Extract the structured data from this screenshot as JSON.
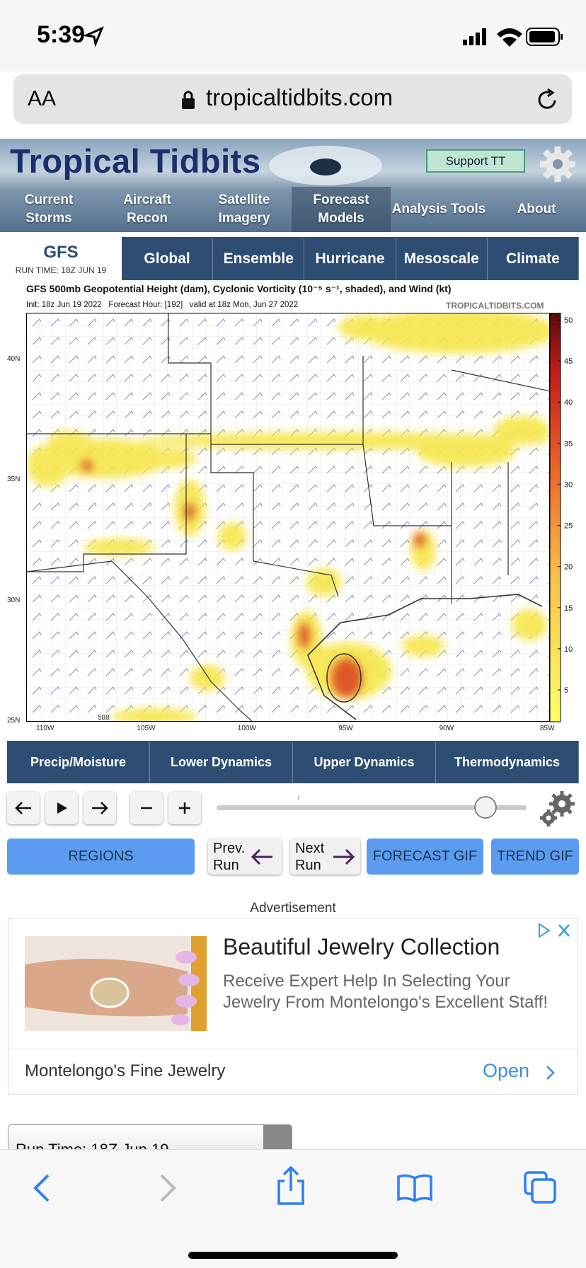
{
  "status_bar": {
    "time": "5:39"
  },
  "browser": {
    "text_size": "AA",
    "url": "tropicaltidbits.com"
  },
  "site": {
    "logo": "Tropical Tidbits",
    "support": "Support TT",
    "nav": [
      "Current Storms",
      "Aircraft Recon",
      "Satellite Imagery",
      "Forecast Models",
      "Analysis Tools",
      "About"
    ]
  },
  "model": {
    "name": "GFS",
    "run_time": "RUN TIME: 18Z JUN 19"
  },
  "tabs": [
    "Global",
    "Ensemble",
    "Hurricane",
    "Mesoscale",
    "Climate"
  ],
  "map": {
    "title": "GFS 500mb Geopotential Height (dam), Cyclonic Vorticity (10⁻⁵ s⁻¹, shaded), and Wind (kt)",
    "subtitle": "Init: 18z Jun 19 2022   Forecast Hour: [192]   valid at 18z Mon, Jun 27 2022",
    "watermark": "TROPICALTIDBITS.COM",
    "lat_labels": [
      "40N",
      "35N",
      "30N",
      "25N"
    ],
    "lon_labels": [
      "110W",
      "105W",
      "100W",
      "95W",
      "90W",
      "85W"
    ],
    "colorbar": [
      50,
      45,
      40,
      35,
      30,
      25,
      20,
      15,
      10,
      5
    ],
    "contour_label": "588"
  },
  "categories": [
    "Precip/Moisture",
    "Lower Dynamics",
    "Upper Dynamics",
    "Thermodynamics"
  ],
  "buttons": {
    "regions": "REGIONS",
    "prev": "Prev. Run",
    "next": "Next Run",
    "forecast_gif": "FORECAST GIF",
    "trend_gif": "TREND GIF"
  },
  "ad": {
    "label": "Advertisement",
    "title": "Beautiful Jewelry Collection",
    "body": "Receive Expert Help In Selecting Your Jewelry From Montelongo's Excellent Staff!",
    "advertiser": "Montelongo's Fine Jewelry",
    "cta": "Open"
  },
  "run_select": "Run Time: 18Z Jun 19"
}
